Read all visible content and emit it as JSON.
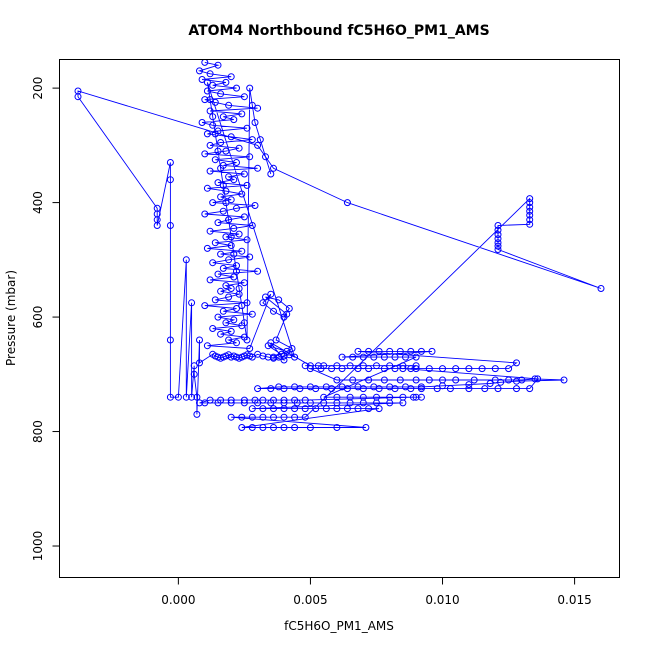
{
  "chart_data": {
    "type": "scatter",
    "title": "ATOM4 Northbound fC5H6O_PM1_AMS",
    "xlabel": "fC5H6O_PM1_AMS",
    "ylabel": "Pressure (mbar)",
    "xlim": [
      -0.0045,
      0.0167
    ],
    "ylim": [
      1055,
      150
    ],
    "y_inverted": true,
    "grid": false,
    "legend": "none",
    "x_ticks": [
      0.0,
      0.005,
      0.01,
      0.015
    ],
    "x_tick_labels": [
      "0.000",
      "0.005",
      "0.010",
      "0.015"
    ],
    "y_ticks": [
      200,
      400,
      600,
      800,
      1000
    ],
    "y_tick_labels": [
      "200",
      "400",
      "600",
      "800",
      "1000"
    ],
    "series": [
      {
        "color": "#0000ff",
        "marker": "open-circle",
        "connect": true,
        "x": [
          0.001,
          0.0015,
          0.0008,
          0.0012,
          0.002,
          0.0009,
          0.0018,
          0.0013,
          0.0022,
          0.0011,
          0.0016,
          0.0025,
          0.001,
          0.0014,
          0.0019,
          0.003,
          0.0012,
          0.0024,
          0.0017,
          0.0021,
          0.0009,
          0.0013,
          0.0026,
          0.0015,
          0.0011,
          0.002,
          0.0028,
          0.0016,
          0.0012,
          0.0023,
          0.0018,
          0.001,
          0.0027,
          0.0014,
          0.0022,
          0.0017,
          0.003,
          0.0012,
          0.0025,
          0.0019,
          0.0021,
          0.0015,
          0.0026,
          0.0011,
          0.0018,
          0.0024,
          0.0016,
          0.002,
          0.0013,
          0.0029,
          0.0022,
          0.0017,
          0.001,
          0.0025,
          0.0019,
          0.0015,
          0.0028,
          0.0021,
          0.0012,
          0.0023,
          0.0018,
          0.0026,
          0.0014,
          0.002,
          0.0011,
          0.0024,
          0.0016,
          0.0027,
          0.0019,
          0.0013,
          0.0022,
          0.0017,
          0.003,
          0.0015,
          0.0021,
          0.0012,
          0.0025,
          0.0018,
          0.002,
          0.0016,
          0.0023,
          0.0019,
          0.0014,
          0.0026,
          0.001,
          0.0022,
          0.0017,
          0.0028,
          0.0015,
          0.0021,
          0.0018,
          0.0024,
          0.0013,
          0.002,
          0.0016,
          0.0025,
          0.0019,
          0.0022,
          0.0011,
          0.0027,
          0.0035,
          0.0032,
          0.0036,
          0.004,
          0.0042,
          0.0038,
          0.0033,
          0.0041,
          0.0037,
          0.0043,
          0.0039,
          0.0034,
          0.0041,
          0.0036,
          0.004,
          0.0035,
          0.005,
          0.0053,
          0.0048,
          0.0055,
          0.006,
          0.0065,
          0.007,
          0.0075,
          0.008,
          0.0085,
          0.009,
          0.0088,
          0.0082,
          0.0078,
          0.0072,
          0.0068,
          0.0062,
          0.0058,
          0.0054,
          0.005,
          0.006,
          0.0066,
          0.0072,
          0.0078,
          0.0084,
          0.009,
          0.0095,
          0.01,
          0.0105,
          0.0112,
          0.012,
          0.0125,
          0.013,
          0.0135,
          0.0146,
          0.0128,
          0.0122,
          0.0118,
          0.011,
          0.01,
          0.0092,
          0.0086,
          0.008,
          0.0074,
          0.0068,
          0.0062,
          0.0056,
          0.005,
          0.0044,
          0.0038,
          0.003,
          0.0035,
          0.004,
          0.0046,
          0.0052,
          0.0058,
          0.0064,
          0.007,
          0.0076,
          0.0082,
          0.0088,
          0.0092,
          0.0098,
          0.0103,
          0.011,
          0.0116,
          0.0121,
          0.0128,
          0.0133,
          0.0136,
          0.0085,
          0.009,
          0.0095,
          0.01,
          0.0105,
          0.011,
          0.0115,
          0.012,
          0.0125,
          0.0128,
          0.0068,
          0.0072,
          0.0076,
          0.008,
          0.0084,
          0.0088,
          0.0092,
          0.0096,
          0.0062,
          0.0066,
          0.007,
          0.0074,
          0.0078,
          0.0082,
          0.0086,
          0.009,
          0.0055,
          0.006,
          0.0065,
          0.007,
          0.0075,
          0.008,
          0.0085,
          0.009,
          0.0092,
          0.0089,
          0.0048,
          0.0044,
          0.004,
          0.0036,
          0.0032,
          0.0029,
          0.0025,
          0.002,
          0.0016,
          0.0012,
          0.0008,
          0.001,
          0.0015,
          0.002,
          0.0025,
          0.003,
          0.0035,
          0.004,
          0.0045,
          0.005,
          0.0055,
          0.006,
          0.0065,
          0.007,
          0.0075,
          0.008,
          0.0085,
          0.0028,
          0.0032,
          0.0036,
          0.004,
          0.0044,
          0.0048,
          0.0052,
          0.0056,
          0.006,
          0.0064,
          0.0068,
          0.0072,
          0.0076,
          0.0024,
          0.0028,
          0.0032,
          0.0036,
          0.004,
          0.0044,
          0.005,
          0.006,
          0.0071,
          0.002,
          0.0024,
          0.0028,
          0.0032,
          0.0036,
          0.004,
          0.0044,
          0.0048,
          0.0133,
          0.0133,
          0.0133,
          0.0133,
          0.0133,
          0.0133,
          0.0133,
          0.0121,
          0.0121,
          0.0121,
          0.0121,
          0.0121,
          0.0121,
          0.0121,
          0.016,
          0.0064,
          0.0036,
          0.003,
          -0.0038,
          -0.0038,
          -0.0008,
          -0.0008,
          -0.0008,
          -0.0008,
          -0.0003,
          -0.0003,
          -0.0003,
          -0.0003,
          -0.0003,
          0.0,
          0.0003,
          0.0003,
          0.0005,
          0.0005,
          0.0006,
          0.0006,
          0.0007,
          0.0007,
          0.0008,
          0.0008,
          0.0013,
          0.0014,
          0.0015,
          0.0016,
          0.0017,
          0.0018,
          0.0019,
          0.002,
          0.0021,
          0.0022,
          0.0023,
          0.0024,
          0.0025,
          0.0026,
          0.0027,
          0.0028,
          0.003,
          0.0032,
          0.0034,
          0.0036,
          0.0038,
          0.004,
          0.0042,
          0.0044,
          0.0011,
          0.0012,
          0.0013,
          0.0014,
          0.0015,
          0.0016,
          0.0017,
          0.0018,
          0.0019,
          0.002,
          0.0021,
          0.0022,
          0.0023,
          0.0024,
          0.0025,
          0.0026,
          0.0027,
          0.0028,
          0.0029,
          0.0031,
          0.0033,
          0.0035
        ],
        "y": [
          155,
          160,
          170,
          175,
          180,
          185,
          190,
          195,
          200,
          205,
          210,
          215,
          220,
          225,
          230,
          235,
          240,
          245,
          250,
          255,
          260,
          265,
          270,
          275,
          280,
          285,
          290,
          295,
          300,
          305,
          310,
          315,
          320,
          325,
          330,
          335,
          340,
          345,
          350,
          355,
          360,
          365,
          370,
          375,
          380,
          385,
          390,
          395,
          400,
          405,
          410,
          415,
          420,
          425,
          430,
          435,
          440,
          445,
          450,
          455,
          460,
          465,
          470,
          475,
          480,
          485,
          490,
          495,
          500,
          505,
          510,
          515,
          520,
          525,
          530,
          535,
          540,
          545,
          550,
          555,
          560,
          565,
          570,
          575,
          580,
          585,
          590,
          595,
          600,
          605,
          610,
          615,
          620,
          625,
          630,
          635,
          640,
          645,
          650,
          655,
          560,
          575,
          590,
          600,
          585,
          570,
          565,
          595,
          640,
          655,
          665,
          650,
          660,
          670,
          675,
          645,
          685,
          685,
          685,
          685,
          685,
          685,
          685,
          685,
          685,
          685,
          685,
          690,
          690,
          690,
          690,
          690,
          690,
          690,
          690,
          690,
          710,
          710,
          710,
          710,
          710,
          710,
          710,
          710,
          710,
          710,
          710,
          710,
          710,
          708,
          710,
          712,
          714,
          716,
          718,
          720,
          722,
          722,
          722,
          722,
          722,
          722,
          722,
          722,
          722,
          722,
          725,
          725,
          725,
          725,
          725,
          725,
          725,
          725,
          725,
          725,
          725,
          725,
          725,
          725,
          725,
          725,
          725,
          725,
          725,
          708,
          690,
          690,
          690,
          690,
          690,
          690,
          690,
          690,
          690,
          680,
          660,
          660,
          660,
          660,
          660,
          660,
          660,
          660,
          670,
          670,
          670,
          670,
          670,
          670,
          670,
          670,
          740,
          740,
          740,
          740,
          740,
          740,
          740,
          740,
          740,
          740,
          745,
          745,
          745,
          745,
          745,
          745,
          745,
          745,
          745,
          745,
          750,
          750,
          750,
          750,
          750,
          750,
          750,
          750,
          750,
          750,
          750,
          750,
          750,
          750,
          750,
          750,
          750,
          760,
          760,
          760,
          760,
          760,
          760,
          760,
          760,
          760,
          760,
          760,
          760,
          760,
          793,
          793,
          793,
          793,
          793,
          793,
          793,
          793,
          793,
          775,
          775,
          775,
          775,
          775,
          775,
          775,
          775,
          393,
          400,
          408,
          415,
          422,
          430,
          438,
          440,
          448,
          456,
          463,
          470,
          476,
          482,
          550,
          400,
          340,
          300,
          205,
          215,
          410,
          420,
          430,
          440,
          330,
          360,
          440,
          640,
          740,
          740,
          500,
          740,
          575,
          740,
          685,
          700,
          740,
          770,
          640,
          680,
          665,
          668,
          670,
          672,
          670,
          668,
          666,
          670,
          668,
          670,
          672,
          670,
          668,
          666,
          668,
          670,
          665,
          668,
          670,
          672,
          670,
          668,
          666,
          670,
          190,
          220,
          250,
          280,
          310,
          340,
          370,
          400,
          430,
          460,
          490,
          520,
          550,
          580,
          610,
          640,
          200,
          230,
          260,
          290,
          320,
          350
        ]
      }
    ]
  }
}
